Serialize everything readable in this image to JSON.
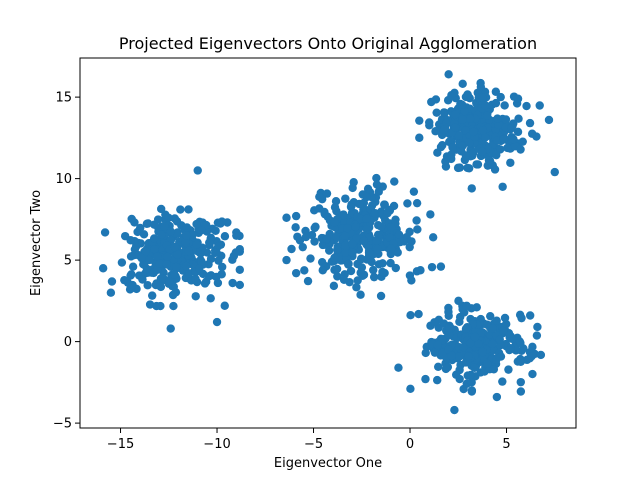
{
  "chart_data": {
    "type": "scatter",
    "title": "Projected Eigenvectors Onto Original Agglomeration",
    "xlabel": "Eigenvector One",
    "ylabel": "Eigenvector Two",
    "xlim": [
      -17.1,
      8.6
    ],
    "ylim": [
      -5.3,
      17.4
    ],
    "xticks": [
      -15,
      -10,
      -5,
      0,
      5
    ],
    "xtick_labels": [
      "−15",
      "−10",
      "−5",
      "0",
      "5"
    ],
    "yticks": [
      -5,
      0,
      5,
      10,
      15
    ],
    "yticks_labels": [
      "−5",
      "0",
      "5",
      "10",
      "15"
    ],
    "grid": false,
    "marker_color": "#1f77b4",
    "clusters": [
      {
        "center": [
          -12.2,
          5.3
        ],
        "spread": [
          1.3,
          1.2
        ],
        "n": 300
      },
      {
        "center": [
          -2.5,
          6.5
        ],
        "spread": [
          1.4,
          1.4
        ],
        "n": 300
      },
      {
        "center": [
          3.6,
          13.0
        ],
        "spread": [
          1.2,
          1.1
        ],
        "n": 300
      },
      {
        "center": [
          3.4,
          -0.2
        ],
        "spread": [
          1.3,
          1.1
        ],
        "n": 300
      }
    ],
    "outliers": [
      [
        -11.0,
        10.5
      ],
      [
        2.0,
        16.4
      ],
      [
        7.5,
        10.4
      ],
      [
        -15.8,
        6.7
      ],
      [
        -15.9,
        4.5
      ],
      [
        -9.0,
        6.7
      ],
      [
        -9.0,
        6.5
      ],
      [
        -15.5,
        3.0
      ],
      [
        -12.4,
        0.8
      ],
      [
        -10.0,
        1.2
      ],
      [
        -9.6,
        2.2
      ],
      [
        -6.4,
        7.6
      ],
      [
        -6.4,
        5.0
      ],
      [
        -5.9,
        4.2
      ],
      [
        -5.9,
        7.7
      ],
      [
        1.2,
        6.4
      ],
      [
        1.6,
        4.6
      ],
      [
        0.2,
        9.2
      ],
      [
        -1.5,
        2.8
      ],
      [
        7.2,
        13.6
      ],
      [
        6.6,
        0.9
      ],
      [
        6.3,
        -0.9
      ],
      [
        2.3,
        -4.2
      ],
      [
        4.5,
        -3.4
      ],
      [
        0.8,
        -2.3
      ],
      [
        -0.6,
        -1.6
      ],
      [
        1.1,
        14.7
      ],
      [
        3.2,
        9.4
      ],
      [
        4.8,
        9.5
      ],
      [
        -11.9,
        8.1
      ]
    ],
    "seed": 7
  }
}
